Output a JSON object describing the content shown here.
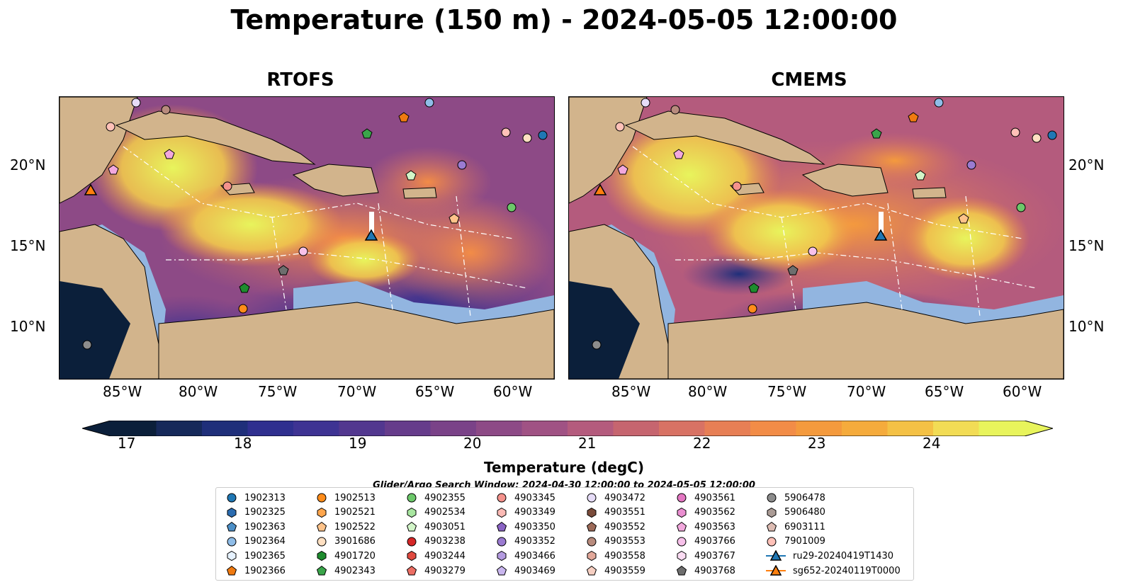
{
  "title": "Temperature (150 m) - 2024-05-05 12:00:00",
  "panels": [
    {
      "title": "RTOFS"
    },
    {
      "title": "CMEMS"
    }
  ],
  "lat_ticks": [
    "20°N",
    "15°N",
    "10°N"
  ],
  "lon_ticks": [
    "85°W",
    "80°W",
    "75°W",
    "70°W",
    "65°W",
    "60°W"
  ],
  "colorbar": {
    "label": "Temperature (degC)",
    "ticks": [
      "17",
      "18",
      "19",
      "20",
      "21",
      "22",
      "23",
      "24"
    ],
    "colors": [
      "#0b1f3a",
      "#16295a",
      "#1f2f7a",
      "#2f2f8f",
      "#3e3393",
      "#52378f",
      "#663c8b",
      "#7a4288",
      "#8d4a86",
      "#a05284",
      "#b45b7d",
      "#c6656f",
      "#d87264",
      "#e77f55",
      "#f28c47",
      "#f49a3d",
      "#f5ab3c",
      "#f4c145",
      "#f2dc55",
      "#e8f45c"
    ]
  },
  "legend": {
    "caption": "Glider/Argo Search Window: 2024-04-30 12:00:00 to 2024-05-05 12:00:00",
    "items": [
      {
        "label": "1902313",
        "marker": "circle",
        "color": "#1f77b4"
      },
      {
        "label": "1902325",
        "marker": "hexagon",
        "color": "#2b6cb0"
      },
      {
        "label": "1902363",
        "marker": "pentagon",
        "color": "#4c8fc7"
      },
      {
        "label": "1902364",
        "marker": "circle",
        "color": "#8fbde8"
      },
      {
        "label": "1902365",
        "marker": "hexagon",
        "color": "#e6f2ff"
      },
      {
        "label": "1902366",
        "marker": "pentagon",
        "color": "#f07a10"
      },
      {
        "label": "1902513",
        "marker": "circle",
        "color": "#ff8c1a"
      },
      {
        "label": "1902521",
        "marker": "hexagon",
        "color": "#ffa64d"
      },
      {
        "label": "1902522",
        "marker": "pentagon",
        "color": "#ffc38a"
      },
      {
        "label": "3901686",
        "marker": "circle",
        "color": "#ffe0c2"
      },
      {
        "label": "4901720",
        "marker": "hexagon",
        "color": "#1e8c2e"
      },
      {
        "label": "4902343",
        "marker": "pentagon",
        "color": "#3aa54a"
      },
      {
        "label": "4902355",
        "marker": "circle",
        "color": "#6cc86a"
      },
      {
        "label": "4902534",
        "marker": "hexagon",
        "color": "#a8e6a0"
      },
      {
        "label": "4903051",
        "marker": "pentagon",
        "color": "#d2f5c8"
      },
      {
        "label": "4903238",
        "marker": "circle",
        "color": "#d62728"
      },
      {
        "label": "4903244",
        "marker": "hexagon",
        "color": "#e04a40"
      },
      {
        "label": "4903279",
        "marker": "pentagon",
        "color": "#ec6e64"
      },
      {
        "label": "4903345",
        "marker": "circle",
        "color": "#f4928c"
      },
      {
        "label": "4903349",
        "marker": "hexagon",
        "color": "#fbbab5"
      },
      {
        "label": "4903350",
        "marker": "pentagon",
        "color": "#8a63c4"
      },
      {
        "label": "4903352",
        "marker": "circle",
        "color": "#9b7bd1"
      },
      {
        "label": "4903466",
        "marker": "hexagon",
        "color": "#b49be0"
      },
      {
        "label": "4903469",
        "marker": "pentagon",
        "color": "#c9b6ee"
      },
      {
        "label": "4903472",
        "marker": "circle",
        "color": "#e6dcf7"
      },
      {
        "label": "4903551",
        "marker": "hexagon",
        "color": "#7a4b3a"
      },
      {
        "label": "4903552",
        "marker": "pentagon",
        "color": "#9c6a58"
      },
      {
        "label": "4903553",
        "marker": "circle",
        "color": "#b88b7d"
      },
      {
        "label": "4903558",
        "marker": "hexagon",
        "color": "#e2a89a"
      },
      {
        "label": "4903559",
        "marker": "pentagon",
        "color": "#f6cfc2"
      },
      {
        "label": "4903561",
        "marker": "circle",
        "color": "#e377c2"
      },
      {
        "label": "4903562",
        "marker": "hexagon",
        "color": "#ea8fd1"
      },
      {
        "label": "4903563",
        "marker": "pentagon",
        "color": "#f2a8dd"
      },
      {
        "label": "4903766",
        "marker": "circle",
        "color": "#f7c1ea"
      },
      {
        "label": "4903767",
        "marker": "hexagon",
        "color": "#fbdcf3"
      },
      {
        "label": "4903768",
        "marker": "pentagon",
        "color": "#6e6e6e"
      },
      {
        "label": "5906478",
        "marker": "circle",
        "color": "#8c8c8c"
      },
      {
        "label": "5906480",
        "marker": "hexagon",
        "color": "#ab9c96"
      },
      {
        "label": "6903111",
        "marker": "pentagon",
        "color": "#ddbcb3"
      },
      {
        "label": "7901009",
        "marker": "circle",
        "color": "#ffc1b8"
      },
      {
        "label": "ru29-20240419T1430",
        "marker": "triangle",
        "color": "#1f77b4"
      },
      {
        "label": "sg652-20240119T0000",
        "marker": "triangle",
        "color": "#ff7f0e"
      }
    ]
  }
}
